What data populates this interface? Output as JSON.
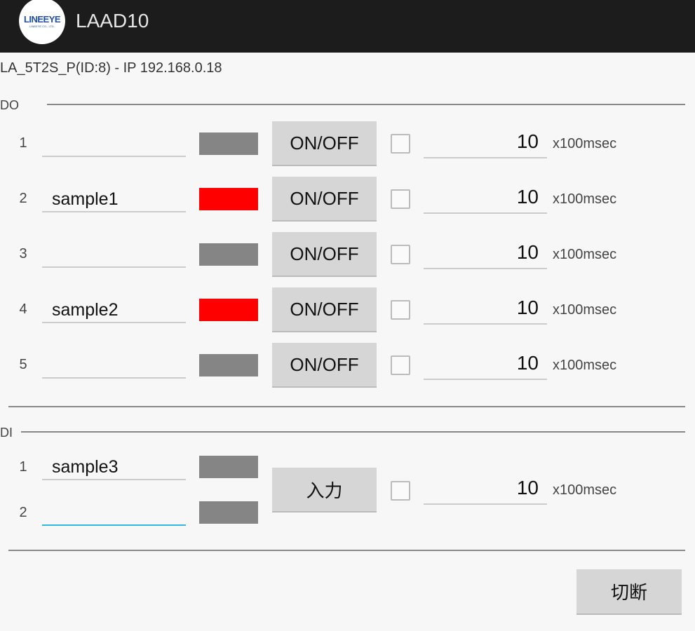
{
  "app": {
    "title": "LAAD10",
    "logo_text": "LINEEYE",
    "logo_sub": "LINEEYE CO., LTD."
  },
  "device": {
    "info": "LA_5T2S_P(ID:8)  - IP  192.168.0.18"
  },
  "colors": {
    "off": "#858585",
    "on": "#ff0000"
  },
  "do": {
    "label": "DO",
    "rows": [
      {
        "num": "1",
        "name": "",
        "state": "off",
        "button": "ON/OFF",
        "checked": false,
        "count": "10",
        "unit": "x100msec"
      },
      {
        "num": "2",
        "name": "sample1",
        "state": "on",
        "button": "ON/OFF",
        "checked": false,
        "count": "10",
        "unit": "x100msec"
      },
      {
        "num": "3",
        "name": "",
        "state": "off",
        "button": "ON/OFF",
        "checked": false,
        "count": "10",
        "unit": "x100msec"
      },
      {
        "num": "4",
        "name": "sample2",
        "state": "on",
        "button": "ON/OFF",
        "checked": false,
        "count": "10",
        "unit": "x100msec"
      },
      {
        "num": "5",
        "name": "",
        "state": "off",
        "button": "ON/OFF",
        "checked": false,
        "count": "10",
        "unit": "x100msec"
      }
    ]
  },
  "di": {
    "label": "DI",
    "rows": [
      {
        "num": "1",
        "name": "sample3",
        "state": "off"
      },
      {
        "num": "2",
        "name": "",
        "state": "off"
      }
    ],
    "button": "入力",
    "checked": false,
    "count": "10",
    "unit": "x100msec"
  },
  "disconnect": "切断"
}
